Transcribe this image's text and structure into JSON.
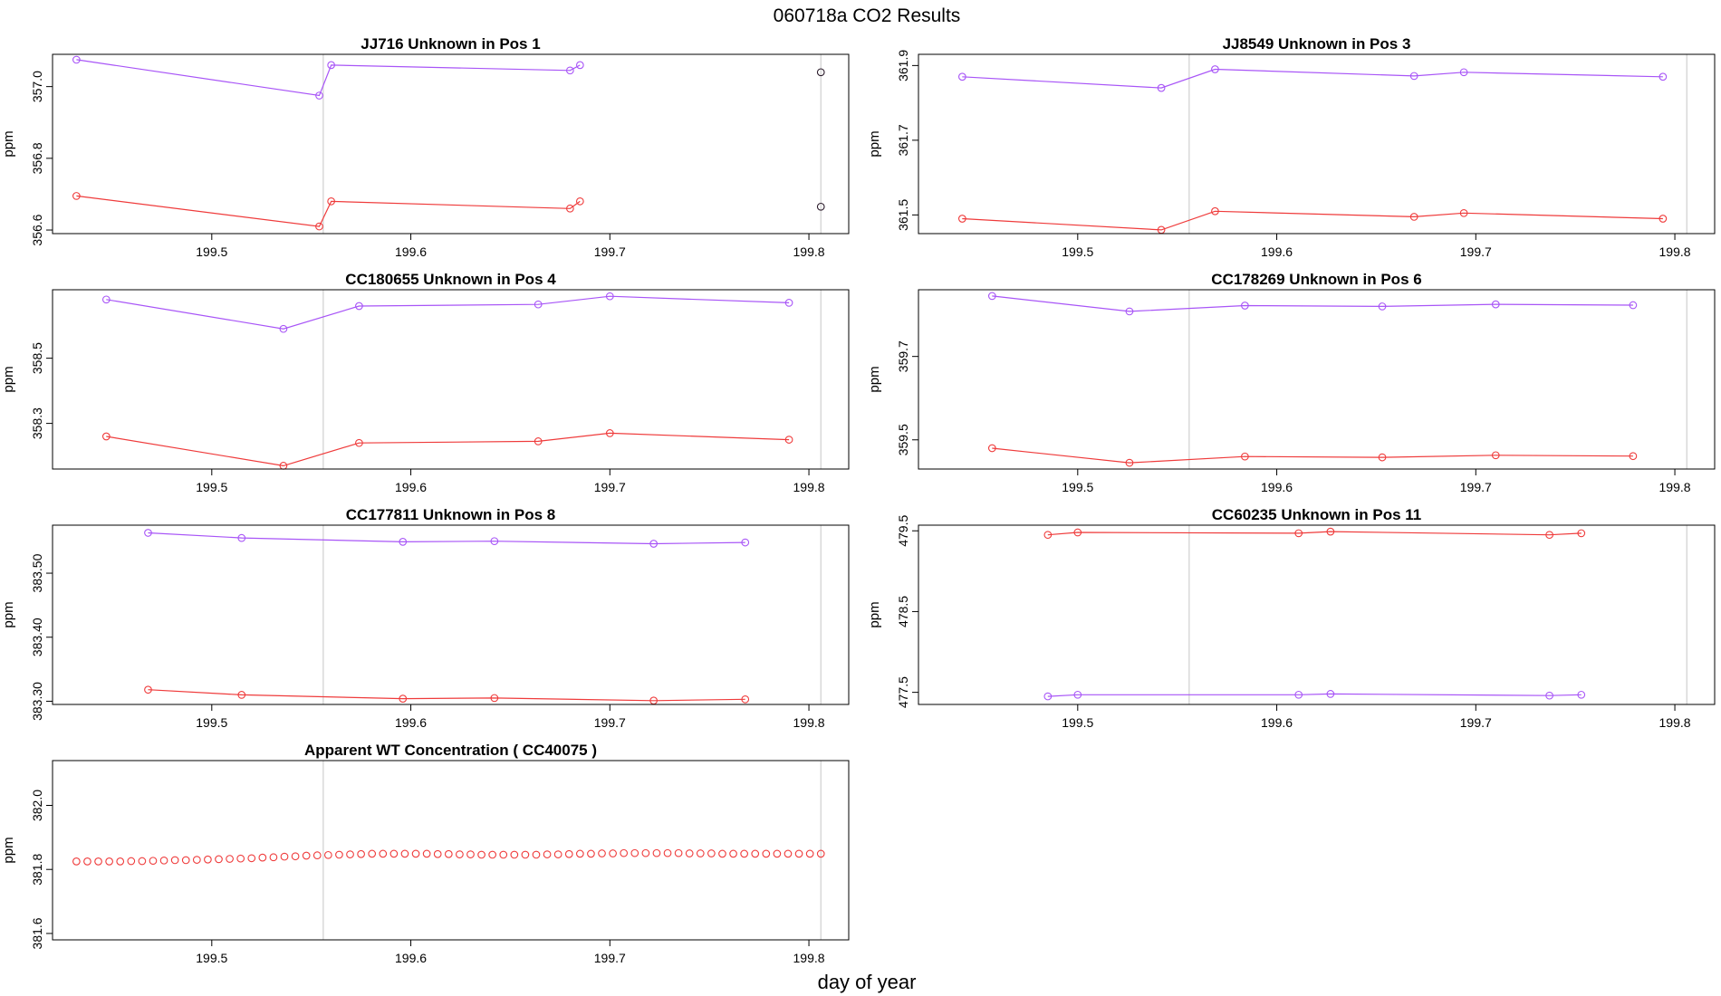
{
  "figure": {
    "title": "060718a  CO2 Results",
    "xlabel": "day of year"
  },
  "colors": {
    "upper": "#a855f7",
    "lower": "#ef3b3b",
    "single": "#2a1a2a",
    "refline": "#cfcfcf",
    "frame": "#000000"
  },
  "chart_data": [
    {
      "type": "line",
      "title": "JJ716    Unknown in Pos 1",
      "ylabel": "ppm",
      "xlim": [
        199.42,
        199.82
      ],
      "ylim": [
        356.59,
        357.09
      ],
      "xticks": [
        199.5,
        199.6,
        199.7,
        199.8
      ],
      "xtick_labels": [
        "199.5",
        "199.6",
        "199.7",
        "199.8"
      ],
      "yticks": [
        356.6,
        356.8,
        357.0
      ],
      "ytick_labels": [
        "356.6",
        "356.8",
        "357.0"
      ],
      "vlines": [
        199.556,
        199.806
      ],
      "series": [
        {
          "name": "upper",
          "color_key": "upper",
          "x": [
            199.432,
            199.554,
            199.56,
            199.68,
            199.685
          ],
          "y": [
            357.075,
            356.975,
            357.06,
            357.045,
            357.06
          ]
        },
        {
          "name": "lower",
          "color_key": "lower",
          "x": [
            199.432,
            199.554,
            199.56,
            199.68,
            199.685
          ],
          "y": [
            356.695,
            356.61,
            356.68,
            356.66,
            356.68
          ]
        },
        {
          "name": "single-high",
          "color_key": "single",
          "x": [
            199.806
          ],
          "y": [
            357.04
          ],
          "markers_only": true
        },
        {
          "name": "single-low",
          "color_key": "single",
          "x": [
            199.806
          ],
          "y": [
            356.665
          ],
          "markers_only": true
        }
      ]
    },
    {
      "type": "line",
      "title": "JJ8549    Unknown in Pos 3",
      "ylabel": "ppm",
      "xlim": [
        199.42,
        199.82
      ],
      "ylim": [
        361.45,
        361.93
      ],
      "xticks": [
        199.5,
        199.6,
        199.7,
        199.8
      ],
      "xtick_labels": [
        "199.5",
        "199.6",
        "199.7",
        "199.8"
      ],
      "yticks": [
        361.5,
        361.7,
        361.9
      ],
      "ytick_labels": [
        "361.5",
        "361.7",
        "361.9"
      ],
      "vlines": [
        199.556,
        199.806
      ],
      "series": [
        {
          "name": "upper",
          "color_key": "upper",
          "x": [
            199.442,
            199.542,
            199.569,
            199.669,
            199.694,
            199.794
          ],
          "y": [
            361.87,
            361.84,
            361.89,
            361.872,
            361.882,
            361.87
          ]
        },
        {
          "name": "lower",
          "color_key": "lower",
          "x": [
            199.442,
            199.542,
            199.569,
            199.669,
            199.694,
            199.794
          ],
          "y": [
            361.49,
            361.46,
            361.51,
            361.495,
            361.505,
            361.49
          ]
        }
      ]
    },
    {
      "type": "line",
      "title": "CC180655    Unknown in Pos 4",
      "ylabel": "ppm",
      "xlim": [
        199.42,
        199.82
      ],
      "ylim": [
        358.16,
        358.71
      ],
      "xticks": [
        199.5,
        199.6,
        199.7,
        199.8
      ],
      "xtick_labels": [
        "199.5",
        "199.6",
        "199.7",
        "199.8"
      ],
      "yticks": [
        358.3,
        358.5
      ],
      "ytick_labels": [
        "358.3",
        "358.5"
      ],
      "vlines": [
        199.556,
        199.806
      ],
      "series": [
        {
          "name": "upper",
          "color_key": "upper",
          "x": [
            199.447,
            199.536,
            199.574,
            199.664,
            199.7,
            199.79
          ],
          "y": [
            358.68,
            358.59,
            358.66,
            358.665,
            358.69,
            358.67
          ]
        },
        {
          "name": "lower",
          "color_key": "lower",
          "x": [
            199.447,
            199.536,
            199.574,
            199.664,
            199.7,
            199.79
          ],
          "y": [
            358.26,
            358.17,
            358.24,
            358.245,
            358.27,
            358.25
          ]
        }
      ]
    },
    {
      "type": "line",
      "title": "CC178269    Unknown in Pos 6",
      "ylabel": "ppm",
      "xlim": [
        199.42,
        199.82
      ],
      "ylim": [
        359.43,
        359.86
      ],
      "xticks": [
        199.5,
        199.6,
        199.7,
        199.8
      ],
      "xtick_labels": [
        "199.5",
        "199.6",
        "199.7",
        "199.8"
      ],
      "yticks": [
        359.5,
        359.7
      ],
      "ytick_labels": [
        "359.5",
        "359.7"
      ],
      "vlines": [
        199.556,
        199.806
      ],
      "series": [
        {
          "name": "upper",
          "color_key": "upper",
          "x": [
            199.457,
            199.526,
            199.584,
            199.653,
            199.71,
            199.779
          ],
          "y": [
            359.845,
            359.808,
            359.822,
            359.82,
            359.825,
            359.823
          ]
        },
        {
          "name": "lower",
          "color_key": "lower",
          "x": [
            199.457,
            199.526,
            199.584,
            199.653,
            199.71,
            199.779
          ],
          "y": [
            359.48,
            359.445,
            359.46,
            359.458,
            359.463,
            359.461
          ]
        }
      ]
    },
    {
      "type": "line",
      "title": "CC177811    Unknown in Pos 8",
      "ylabel": "ppm",
      "xlim": [
        199.42,
        199.82
      ],
      "ylim": [
        383.295,
        383.575
      ],
      "xticks": [
        199.5,
        199.6,
        199.7,
        199.8
      ],
      "xtick_labels": [
        "199.5",
        "199.6",
        "199.7",
        "199.8"
      ],
      "yticks": [
        383.3,
        383.4,
        383.5
      ],
      "ytick_labels": [
        "383.30",
        "383.40",
        "383.50"
      ],
      "vlines": [
        199.556,
        199.806
      ],
      "series": [
        {
          "name": "upper",
          "color_key": "upper",
          "x": [
            199.468,
            199.515,
            199.596,
            199.642,
            199.722,
            199.768
          ],
          "y": [
            383.563,
            383.555,
            383.549,
            383.55,
            383.546,
            383.548
          ]
        },
        {
          "name": "lower",
          "color_key": "lower",
          "x": [
            199.468,
            199.515,
            199.596,
            199.642,
            199.722,
            199.768
          ],
          "y": [
            383.318,
            383.31,
            383.304,
            383.305,
            383.301,
            383.303
          ]
        }
      ]
    },
    {
      "type": "line",
      "title": "CC60235    Unknown in Pos 11",
      "ylabel": "ppm",
      "xlim": [
        199.42,
        199.82
      ],
      "ylim": [
        477.35,
        479.57
      ],
      "xticks": [
        199.5,
        199.6,
        199.7,
        199.8
      ],
      "xtick_labels": [
        "199.5",
        "199.6",
        "199.7",
        "199.8"
      ],
      "yticks": [
        477.5,
        478.5,
        479.5
      ],
      "ytick_labels": [
        "477.5",
        "478.5",
        "479.5"
      ],
      "vlines": [
        199.556,
        199.806
      ],
      "series": [
        {
          "name": "upper",
          "color_key": "lower",
          "x": [
            199.485,
            199.5,
            199.611,
            199.627,
            199.737,
            199.753
          ],
          "y": [
            479.45,
            479.48,
            479.47,
            479.49,
            479.45,
            479.47
          ]
        },
        {
          "name": "lower",
          "color_key": "upper",
          "x": [
            199.485,
            199.5,
            199.611,
            199.627,
            199.737,
            199.753
          ],
          "y": [
            477.45,
            477.47,
            477.47,
            477.48,
            477.46,
            477.47
          ]
        }
      ]
    },
    {
      "type": "scatter",
      "title": "Apparent WT Concentration ( CC40075 )",
      "ylabel": "ppm",
      "xlim": [
        199.42,
        199.82
      ],
      "ylim": [
        381.58,
        382.14
      ],
      "xticks": [
        199.5,
        199.6,
        199.7,
        199.8
      ],
      "xtick_labels": [
        "199.5",
        "199.6",
        "199.7",
        "199.8"
      ],
      "yticks": [
        381.6,
        381.8,
        382.0
      ],
      "ytick_labels": [
        "381.6",
        "381.8",
        "382.0"
      ],
      "vlines": [
        199.556,
        199.806
      ],
      "series": [
        {
          "name": "WT",
          "color_key": "lower",
          "markers_only": true,
          "x": [
            199.432,
            199.4375,
            199.443,
            199.4485,
            199.454,
            199.4595,
            199.465,
            199.4705,
            199.476,
            199.4815,
            199.487,
            199.4925,
            199.498,
            199.5035,
            199.509,
            199.5145,
            199.52,
            199.5255,
            199.531,
            199.5365,
            199.542,
            199.5475,
            199.553,
            199.5585,
            199.564,
            199.5695,
            199.575,
            199.5805,
            199.586,
            199.5915,
            199.597,
            199.6025,
            199.608,
            199.6135,
            199.619,
            199.6245,
            199.63,
            199.6355,
            199.641,
            199.6465,
            199.652,
            199.6575,
            199.663,
            199.6685,
            199.674,
            199.6795,
            199.685,
            199.6905,
            199.696,
            199.7015,
            199.707,
            199.7125,
            199.718,
            199.7235,
            199.729,
            199.7345,
            199.74,
            199.7455,
            199.751,
            199.7565,
            199.762,
            199.7675,
            199.773,
            199.7785,
            199.784,
            199.7895,
            199.795,
            199.8005,
            199.806
          ],
          "y": [
            381.825,
            381.825,
            381.825,
            381.825,
            381.825,
            381.826,
            381.826,
            381.827,
            381.828,
            381.829,
            381.829,
            381.83,
            381.831,
            381.832,
            381.833,
            381.834,
            381.835,
            381.837,
            381.838,
            381.84,
            381.841,
            381.843,
            381.844,
            381.845,
            381.846,
            381.847,
            381.848,
            381.849,
            381.849,
            381.849,
            381.849,
            381.849,
            381.849,
            381.848,
            381.848,
            381.847,
            381.847,
            381.846,
            381.846,
            381.846,
            381.846,
            381.846,
            381.846,
            381.847,
            381.847,
            381.848,
            381.849,
            381.849,
            381.85,
            381.85,
            381.851,
            381.851,
            381.851,
            381.851,
            381.851,
            381.851,
            381.85,
            381.85,
            381.85,
            381.849,
            381.849,
            381.849,
            381.849,
            381.849,
            381.849,
            381.849,
            381.849,
            381.849,
            381.849
          ]
        }
      ]
    }
  ]
}
